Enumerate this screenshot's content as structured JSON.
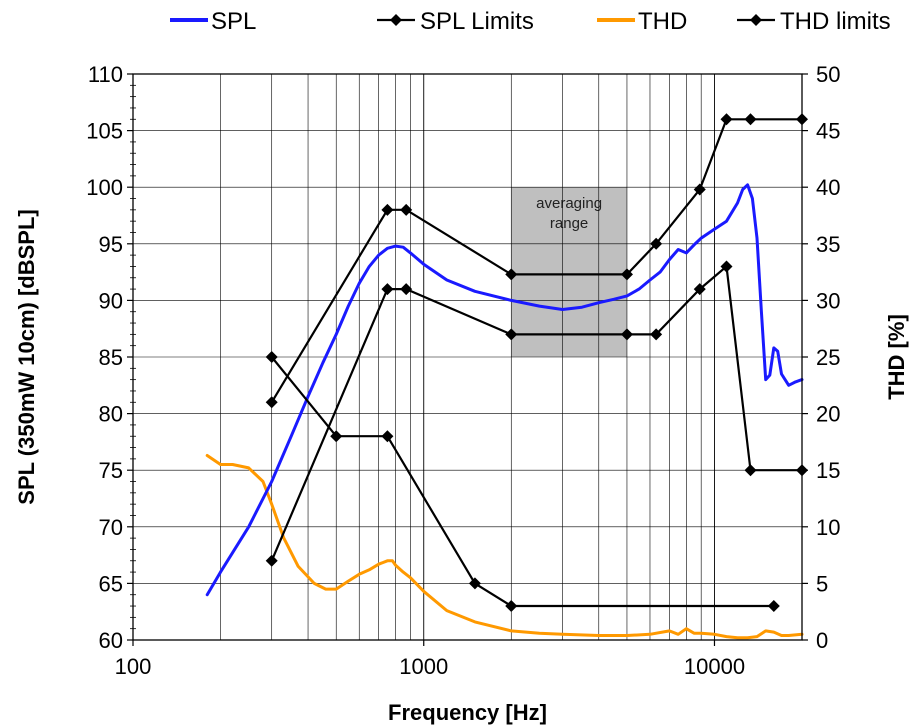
{
  "chart_data": {
    "type": "line",
    "xlabel": "Frequency [Hz]",
    "ylabel": "SPL (350mW 10cm)  [dBSPL]",
    "y2label": "THD  [%]",
    "xscale": "log",
    "xlim": [
      100,
      20000
    ],
    "ylim": [
      60,
      110
    ],
    "y2lim": [
      0,
      50
    ],
    "xticks": [
      "100",
      "1000",
      "10000"
    ],
    "yticks": [
      "60",
      "65",
      "70",
      "75",
      "80",
      "85",
      "90",
      "95",
      "100",
      "105",
      "110"
    ],
    "y2ticks": [
      "0",
      "5",
      "10",
      "15",
      "20",
      "25",
      "30",
      "35",
      "40",
      "45",
      "50"
    ],
    "grid": true,
    "legend_position": "top",
    "annotation": {
      "text_line1": "averaging",
      "text_line2": "range",
      "x_range": [
        2000,
        5000
      ],
      "y_range": [
        85,
        100
      ],
      "color": "#bfbfbf"
    },
    "series": [
      {
        "name": "SPL",
        "axis": "left",
        "color": "#1a1aff",
        "marker": "none",
        "x": [
          180,
          200,
          250,
          300,
          350,
          400,
          450,
          500,
          550,
          600,
          650,
          700,
          750,
          800,
          850,
          900,
          1000,
          1200,
          1500,
          2000,
          2500,
          3000,
          3500,
          4000,
          4500,
          5000,
          5500,
          6000,
          6500,
          7000,
          7500,
          8000,
          8500,
          9000,
          10000,
          11000,
          12000,
          12500,
          13000,
          13500,
          14000,
          14500,
          15000,
          15500,
          16000,
          16500,
          17000,
          18000,
          19000,
          20000
        ],
        "y": [
          64,
          66,
          70,
          74,
          78,
          81.5,
          84.5,
          87,
          89.5,
          91.5,
          93,
          94,
          94.6,
          94.8,
          94.7,
          94.2,
          93.2,
          91.8,
          90.8,
          90.0,
          89.5,
          89.2,
          89.4,
          89.8,
          90.1,
          90.4,
          91,
          91.8,
          92.5,
          93.6,
          94.5,
          94.2,
          94.9,
          95.5,
          96.3,
          97,
          98.6,
          99.8,
          100.2,
          99,
          95.5,
          89,
          83,
          83.4,
          85.8,
          85.5,
          83.5,
          82.5,
          82.8,
          83
        ]
      },
      {
        "name": "SPL Limits",
        "axis": "left",
        "color": "#000000",
        "marker": "diamond",
        "polylines": [
          {
            "x": [
              300,
              750,
              870,
              2000,
              5000,
              6300,
              8900,
              11000,
              13300,
              20000
            ],
            "y": [
              81,
              98,
              98,
              92.3,
              92.3,
              95,
              99.8,
              106,
              106,
              106
            ]
          },
          {
            "x": [
              300,
              750,
              870,
              2000,
              5000,
              6300,
              8900,
              11000,
              13300,
              20000
            ],
            "y": [
              67,
              91,
              91,
              87,
              87,
              87,
              91,
              93,
              75,
              75
            ]
          }
        ]
      },
      {
        "name": "THD",
        "axis": "right",
        "color": "#ff9900",
        "marker": "none",
        "x": [
          180,
          200,
          220,
          250,
          280,
          300,
          330,
          370,
          420,
          460,
          500,
          550,
          600,
          650,
          700,
          750,
          780,
          800,
          850,
          900,
          1000,
          1200,
          1500,
          2000,
          2500,
          3000,
          4000,
          5000,
          6000,
          7000,
          7500,
          8000,
          8500,
          9000,
          10000,
          11000,
          12000,
          13000,
          14000,
          15000,
          16000,
          17000,
          18000,
          20000
        ],
        "y": [
          16.3,
          15.5,
          15.5,
          15.2,
          14,
          12,
          9,
          6.5,
          5,
          4.5,
          4.5,
          5.2,
          5.8,
          6.2,
          6.7,
          7,
          7,
          6.6,
          6,
          5.5,
          4.3,
          2.6,
          1.6,
          0.8,
          0.6,
          0.5,
          0.4,
          0.4,
          0.5,
          0.8,
          0.5,
          1.0,
          0.6,
          0.6,
          0.5,
          0.3,
          0.2,
          0.2,
          0.3,
          0.8,
          0.7,
          0.4,
          0.4,
          0.5
        ]
      },
      {
        "name": "THD limits",
        "axis": "right",
        "color": "#000000",
        "marker": "diamond",
        "x": [
          300,
          500,
          750,
          1500,
          2000,
          16000
        ],
        "y": [
          25,
          18,
          18,
          5,
          3,
          3
        ]
      }
    ]
  }
}
